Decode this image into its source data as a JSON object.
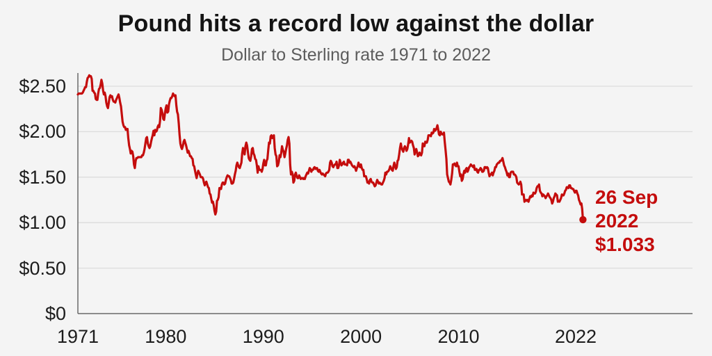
{
  "header": {
    "title": "Pound hits a record low against the dollar",
    "subtitle": "Dollar to Sterling rate 1971 to 2022"
  },
  "colors": {
    "line_red": "#c40d0d",
    "annotation_red": "#c40d0d",
    "background": "#f4f4f4",
    "gridline": "#dcdcdc",
    "axis": "#6a6a6a",
    "title_text": "#141414",
    "subtitle_text": "#5c5c5c",
    "tick_text": "#1c1c1c"
  },
  "chart_data": {
    "type": "line",
    "title": "Pound hits a record low against the dollar",
    "subtitle": "Dollar to Sterling rate 1971 to 2022",
    "xlabel": "",
    "ylabel": "",
    "ylim": [
      0,
      2.65
    ],
    "xlim": [
      1971,
      2034
    ],
    "grid": "horizontal",
    "x_ticks": [
      {
        "year": 1971,
        "label": "1971"
      },
      {
        "year": 1980,
        "label": "1980"
      },
      {
        "year": 1990,
        "label": "1990"
      },
      {
        "year": 2000,
        "label": "2000"
      },
      {
        "year": 2010,
        "label": "2010"
      },
      {
        "year": 2022,
        "label": "2022"
      }
    ],
    "y_ticks": [
      {
        "value": 2.5,
        "label": "$2.50"
      },
      {
        "value": 2.0,
        "label": "$2.00"
      },
      {
        "value": 1.5,
        "label": "$1.50"
      },
      {
        "value": 1.0,
        "label": "$1.00"
      },
      {
        "value": 0.5,
        "label": "$0.50"
      },
      {
        "value": 0,
        "label": "$0"
      }
    ],
    "annotation": {
      "lines": [
        "26 Sep",
        "2022",
        "$1.033"
      ],
      "color": "#c40d0d"
    },
    "series": [
      {
        "name": "Dollar to Sterling rate",
        "color": "#c40d0d",
        "start_year": 1971,
        "points_per_year": 12,
        "values": [
          2.41,
          2.42,
          2.42,
          2.42,
          2.42,
          2.42,
          2.43,
          2.45,
          2.47,
          2.49,
          2.49,
          2.55,
          2.59,
          2.6,
          2.62,
          2.61,
          2.61,
          2.58,
          2.45,
          2.45,
          2.43,
          2.42,
          2.36,
          2.35,
          2.35,
          2.42,
          2.47,
          2.48,
          2.52,
          2.57,
          2.53,
          2.45,
          2.41,
          2.43,
          2.39,
          2.32,
          2.28,
          2.26,
          2.32,
          2.38,
          2.4,
          2.38,
          2.39,
          2.35,
          2.33,
          2.33,
          2.32,
          2.35,
          2.37,
          2.39,
          2.41,
          2.37,
          2.32,
          2.28,
          2.19,
          2.11,
          2.07,
          2.05,
          2.05,
          2.02,
          2.03,
          2.03,
          1.93,
          1.85,
          1.81,
          1.76,
          1.79,
          1.78,
          1.73,
          1.64,
          1.6,
          1.68,
          1.71,
          1.71,
          1.72,
          1.72,
          1.72,
          1.72,
          1.72,
          1.74,
          1.74,
          1.77,
          1.81,
          1.87,
          1.93,
          1.94,
          1.87,
          1.84,
          1.82,
          1.84,
          1.89,
          1.93,
          1.96,
          2.01,
          1.96,
          2.02,
          2.0,
          2.01,
          2.05,
          2.07,
          2.05,
          2.12,
          2.26,
          2.24,
          2.2,
          2.14,
          2.13,
          2.2,
          2.26,
          2.29,
          2.21,
          2.22,
          2.3,
          2.34,
          2.37,
          2.37,
          2.39,
          2.42,
          2.4,
          2.39,
          2.4,
          2.29,
          2.22,
          2.19,
          2.09,
          1.97,
          1.87,
          1.83,
          1.81,
          1.84,
          1.89,
          1.91,
          1.88,
          1.85,
          1.81,
          1.77,
          1.79,
          1.76,
          1.73,
          1.73,
          1.71,
          1.7,
          1.63,
          1.62,
          1.57,
          1.53,
          1.49,
          1.54,
          1.57,
          1.55,
          1.53,
          1.5,
          1.5,
          1.5,
          1.48,
          1.44,
          1.41,
          1.44,
          1.45,
          1.42,
          1.39,
          1.38,
          1.32,
          1.31,
          1.26,
          1.22,
          1.23,
          1.19,
          1.13,
          1.09,
          1.12,
          1.24,
          1.25,
          1.28,
          1.38,
          1.38,
          1.37,
          1.42,
          1.44,
          1.44,
          1.42,
          1.43,
          1.47,
          1.5,
          1.52,
          1.51,
          1.51,
          1.49,
          1.47,
          1.43,
          1.43,
          1.44,
          1.48,
          1.53,
          1.57,
          1.63,
          1.66,
          1.63,
          1.61,
          1.6,
          1.63,
          1.66,
          1.76,
          1.82,
          1.79,
          1.75,
          1.84,
          1.88,
          1.85,
          1.78,
          1.71,
          1.69,
          1.68,
          1.73,
          1.81,
          1.82,
          1.76,
          1.74,
          1.7,
          1.69,
          1.63,
          1.55,
          1.62,
          1.58,
          1.58,
          1.58,
          1.56,
          1.59,
          1.65,
          1.69,
          1.63,
          1.63,
          1.68,
          1.7,
          1.8,
          1.88,
          1.87,
          1.95,
          1.96,
          1.93,
          1.94,
          1.96,
          1.82,
          1.75,
          1.73,
          1.62,
          1.63,
          1.67,
          1.74,
          1.72,
          1.77,
          1.84,
          1.8,
          1.78,
          1.72,
          1.76,
          1.81,
          1.85,
          1.91,
          1.94,
          1.87,
          1.64,
          1.53,
          1.56,
          1.53,
          1.44,
          1.46,
          1.53,
          1.55,
          1.51,
          1.49,
          1.49,
          1.52,
          1.5,
          1.48,
          1.49,
          1.49,
          1.48,
          1.49,
          1.48,
          1.51,
          1.53,
          1.55,
          1.54,
          1.57,
          1.6,
          1.59,
          1.56,
          1.58,
          1.58,
          1.6,
          1.61,
          1.59,
          1.6,
          1.6,
          1.57,
          1.56,
          1.58,
          1.56,
          1.54,
          1.53,
          1.54,
          1.53,
          1.52,
          1.51,
          1.54,
          1.55,
          1.55,
          1.56,
          1.58,
          1.66,
          1.68,
          1.66,
          1.62,
          1.61,
          1.63,
          1.64,
          1.64,
          1.67,
          1.6,
          1.6,
          1.63,
          1.69,
          1.66,
          1.63,
          1.64,
          1.66,
          1.67,
          1.64,
          1.64,
          1.64,
          1.63,
          1.69,
          1.69,
          1.66,
          1.67,
          1.65,
          1.63,
          1.62,
          1.61,
          1.62,
          1.6,
          1.57,
          1.6,
          1.62,
          1.66,
          1.62,
          1.61,
          1.64,
          1.6,
          1.58,
          1.58,
          1.51,
          1.51,
          1.51,
          1.48,
          1.44,
          1.45,
          1.43,
          1.47,
          1.48,
          1.45,
          1.44,
          1.44,
          1.42,
          1.4,
          1.41,
          1.44,
          1.47,
          1.45,
          1.43,
          1.44,
          1.43,
          1.42,
          1.42,
          1.44,
          1.46,
          1.49,
          1.55,
          1.53,
          1.56,
          1.56,
          1.57,
          1.59,
          1.62,
          1.6,
          1.58,
          1.57,
          1.62,
          1.66,
          1.62,
          1.59,
          1.61,
          1.68,
          1.69,
          1.75,
          1.82,
          1.87,
          1.82,
          1.8,
          1.78,
          1.82,
          1.84,
          1.82,
          1.79,
          1.81,
          1.86,
          1.93,
          1.88,
          1.89,
          1.9,
          1.89,
          1.85,
          1.82,
          1.75,
          1.79,
          1.81,
          1.77,
          1.73,
          1.74,
          1.77,
          1.75,
          1.74,
          1.77,
          1.87,
          1.84,
          1.84,
          1.89,
          1.88,
          1.88,
          1.91,
          1.96,
          1.96,
          1.96,
          1.95,
          1.99,
          1.98,
          1.99,
          2.03,
          2.01,
          2.02,
          2.04,
          2.07,
          2.02,
          1.97,
          1.96,
          2.0,
          1.98,
          1.97,
          1.97,
          1.99,
          1.89,
          1.8,
          1.7,
          1.53,
          1.49,
          1.45,
          1.44,
          1.42,
          1.47,
          1.54,
          1.64,
          1.64,
          1.65,
          1.63,
          1.62,
          1.66,
          1.62,
          1.62,
          1.56,
          1.51,
          1.53,
          1.46,
          1.48,
          1.53,
          1.57,
          1.55,
          1.59,
          1.6,
          1.56,
          1.58,
          1.61,
          1.62,
          1.64,
          1.63,
          1.62,
          1.61,
          1.63,
          1.58,
          1.58,
          1.59,
          1.56,
          1.55,
          1.58,
          1.58,
          1.6,
          1.59,
          1.56,
          1.56,
          1.57,
          1.61,
          1.61,
          1.6,
          1.61,
          1.6,
          1.55,
          1.51,
          1.53,
          1.53,
          1.55,
          1.52,
          1.55,
          1.57,
          1.61,
          1.61,
          1.64,
          1.65,
          1.66,
          1.66,
          1.68,
          1.68,
          1.69,
          1.71,
          1.67,
          1.63,
          1.61,
          1.58,
          1.56,
          1.52,
          1.54,
          1.5,
          1.5,
          1.55,
          1.56,
          1.56,
          1.56,
          1.53,
          1.53,
          1.52,
          1.5,
          1.44,
          1.43,
          1.42,
          1.43,
          1.45,
          1.42,
          1.31,
          1.31,
          1.31,
          1.23,
          1.24,
          1.25,
          1.24,
          1.25,
          1.23,
          1.26,
          1.29,
          1.28,
          1.3,
          1.29,
          1.33,
          1.32,
          1.32,
          1.34,
          1.38,
          1.4,
          1.4,
          1.42,
          1.35,
          1.33,
          1.32,
          1.29,
          1.31,
          1.3,
          1.29,
          1.27,
          1.29,
          1.3,
          1.32,
          1.3,
          1.28,
          1.27,
          1.25,
          1.21,
          1.23,
          1.27,
          1.29,
          1.32,
          1.31,
          1.3,
          1.23,
          1.24,
          1.23,
          1.25,
          1.27,
          1.31,
          1.3,
          1.3,
          1.32,
          1.35,
          1.36,
          1.39,
          1.39,
          1.38,
          1.41,
          1.41,
          1.38,
          1.38,
          1.37,
          1.37,
          1.35,
          1.33,
          1.35,
          1.35,
          1.32,
          1.3,
          1.25,
          1.23,
          1.2,
          1.21,
          1.15
        ],
        "final_point": {
          "date": "26 Sep 2022",
          "year_frac": 2022.74,
          "value": 1.033
        }
      }
    ]
  }
}
